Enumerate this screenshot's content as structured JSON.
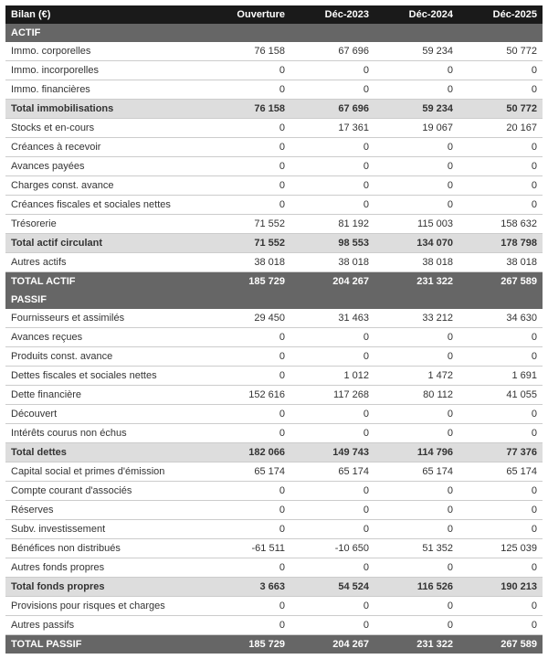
{
  "colors": {
    "header_bg": "#1a1a1a",
    "header_fg": "#ffffff",
    "section_bg": "#666666",
    "section_fg": "#ffffff",
    "subtotal_bg": "#dddddd",
    "total_bg": "#666666",
    "total_fg": "#ffffff",
    "row_border": "#cccccc",
    "text": "#333333"
  },
  "typography": {
    "font_family": "Arial, Helvetica, sans-serif",
    "font_size_pt": 8,
    "header_weight": "bold"
  },
  "table": {
    "type": "table",
    "columns": [
      "Bilan (€)",
      "Ouverture",
      "Déc-2023",
      "Déc-2024",
      "Déc-2025"
    ],
    "column_widths": [
      "220px",
      "auto",
      "auto",
      "auto",
      "auto"
    ],
    "column_align": [
      "left",
      "right",
      "right",
      "right",
      "right"
    ],
    "rows": [
      {
        "kind": "section",
        "label": "ACTIF"
      },
      {
        "kind": "data",
        "label": "Immo. corporelles",
        "values": [
          "76 158",
          "67 696",
          "59 234",
          "50 772"
        ]
      },
      {
        "kind": "data",
        "label": "Immo. incorporelles",
        "values": [
          "0",
          "0",
          "0",
          "0"
        ]
      },
      {
        "kind": "data",
        "label": "Immo. financières",
        "values": [
          "0",
          "0",
          "0",
          "0"
        ]
      },
      {
        "kind": "subtotal",
        "label": "Total immobilisations",
        "values": [
          "76 158",
          "67 696",
          "59 234",
          "50 772"
        ]
      },
      {
        "kind": "data",
        "label": "Stocks et en-cours",
        "values": [
          "0",
          "17 361",
          "19 067",
          "20 167"
        ]
      },
      {
        "kind": "data",
        "label": "Créances à recevoir",
        "values": [
          "0",
          "0",
          "0",
          "0"
        ]
      },
      {
        "kind": "data",
        "label": "Avances payées",
        "values": [
          "0",
          "0",
          "0",
          "0"
        ]
      },
      {
        "kind": "data",
        "label": "Charges const. avance",
        "values": [
          "0",
          "0",
          "0",
          "0"
        ]
      },
      {
        "kind": "data",
        "label": "Créances fiscales et sociales nettes",
        "values": [
          "0",
          "0",
          "0",
          "0"
        ]
      },
      {
        "kind": "data",
        "label": "Trésorerie",
        "values": [
          "71 552",
          "81 192",
          "115 003",
          "158 632"
        ]
      },
      {
        "kind": "subtotal",
        "label": "Total actif circulant",
        "values": [
          "71 552",
          "98 553",
          "134 070",
          "178 798"
        ]
      },
      {
        "kind": "data",
        "label": "Autres actifs",
        "values": [
          "38 018",
          "38 018",
          "38 018",
          "38 018"
        ]
      },
      {
        "kind": "total",
        "label": "TOTAL ACTIF",
        "values": [
          "185 729",
          "204 267",
          "231 322",
          "267 589"
        ]
      },
      {
        "kind": "section",
        "label": "PASSIF"
      },
      {
        "kind": "data",
        "label": "Fournisseurs et assimilés",
        "values": [
          "29 450",
          "31 463",
          "33 212",
          "34 630"
        ]
      },
      {
        "kind": "data",
        "label": "Avances reçues",
        "values": [
          "0",
          "0",
          "0",
          "0"
        ]
      },
      {
        "kind": "data",
        "label": "Produits const. avance",
        "values": [
          "0",
          "0",
          "0",
          "0"
        ]
      },
      {
        "kind": "data",
        "label": "Dettes fiscales et sociales nettes",
        "values": [
          "0",
          "1 012",
          "1 472",
          "1 691"
        ]
      },
      {
        "kind": "data",
        "label": "Dette financière",
        "values": [
          "152 616",
          "117 268",
          "80 112",
          "41 055"
        ]
      },
      {
        "kind": "data",
        "label": "Découvert",
        "values": [
          "0",
          "0",
          "0",
          "0"
        ]
      },
      {
        "kind": "data",
        "label": "Intérêts courus non échus",
        "values": [
          "0",
          "0",
          "0",
          "0"
        ]
      },
      {
        "kind": "subtotal",
        "label": "Total dettes",
        "values": [
          "182 066",
          "149 743",
          "114 796",
          "77 376"
        ]
      },
      {
        "kind": "data",
        "label": "Capital social et primes d'émission",
        "values": [
          "65 174",
          "65 174",
          "65 174",
          "65 174"
        ]
      },
      {
        "kind": "data",
        "label": "Compte courant d'associés",
        "values": [
          "0",
          "0",
          "0",
          "0"
        ]
      },
      {
        "kind": "data",
        "label": "Réserves",
        "values": [
          "0",
          "0",
          "0",
          "0"
        ]
      },
      {
        "kind": "data",
        "label": "Subv. investissement",
        "values": [
          "0",
          "0",
          "0",
          "0"
        ]
      },
      {
        "kind": "data",
        "label": "Bénéfices non distribués",
        "values": [
          "-61 511",
          "-10 650",
          "51 352",
          "125 039"
        ]
      },
      {
        "kind": "data",
        "label": "Autres fonds propres",
        "values": [
          "0",
          "0",
          "0",
          "0"
        ]
      },
      {
        "kind": "subtotal",
        "label": "Total fonds propres",
        "values": [
          "3 663",
          "54 524",
          "116 526",
          "190 213"
        ]
      },
      {
        "kind": "data",
        "label": "Provisions pour risques et charges",
        "values": [
          "0",
          "0",
          "0",
          "0"
        ]
      },
      {
        "kind": "data",
        "label": "Autres passifs",
        "values": [
          "0",
          "0",
          "0",
          "0"
        ]
      },
      {
        "kind": "total",
        "label": "TOTAL PASSIF",
        "values": [
          "185 729",
          "204 267",
          "231 322",
          "267 589"
        ]
      }
    ]
  }
}
